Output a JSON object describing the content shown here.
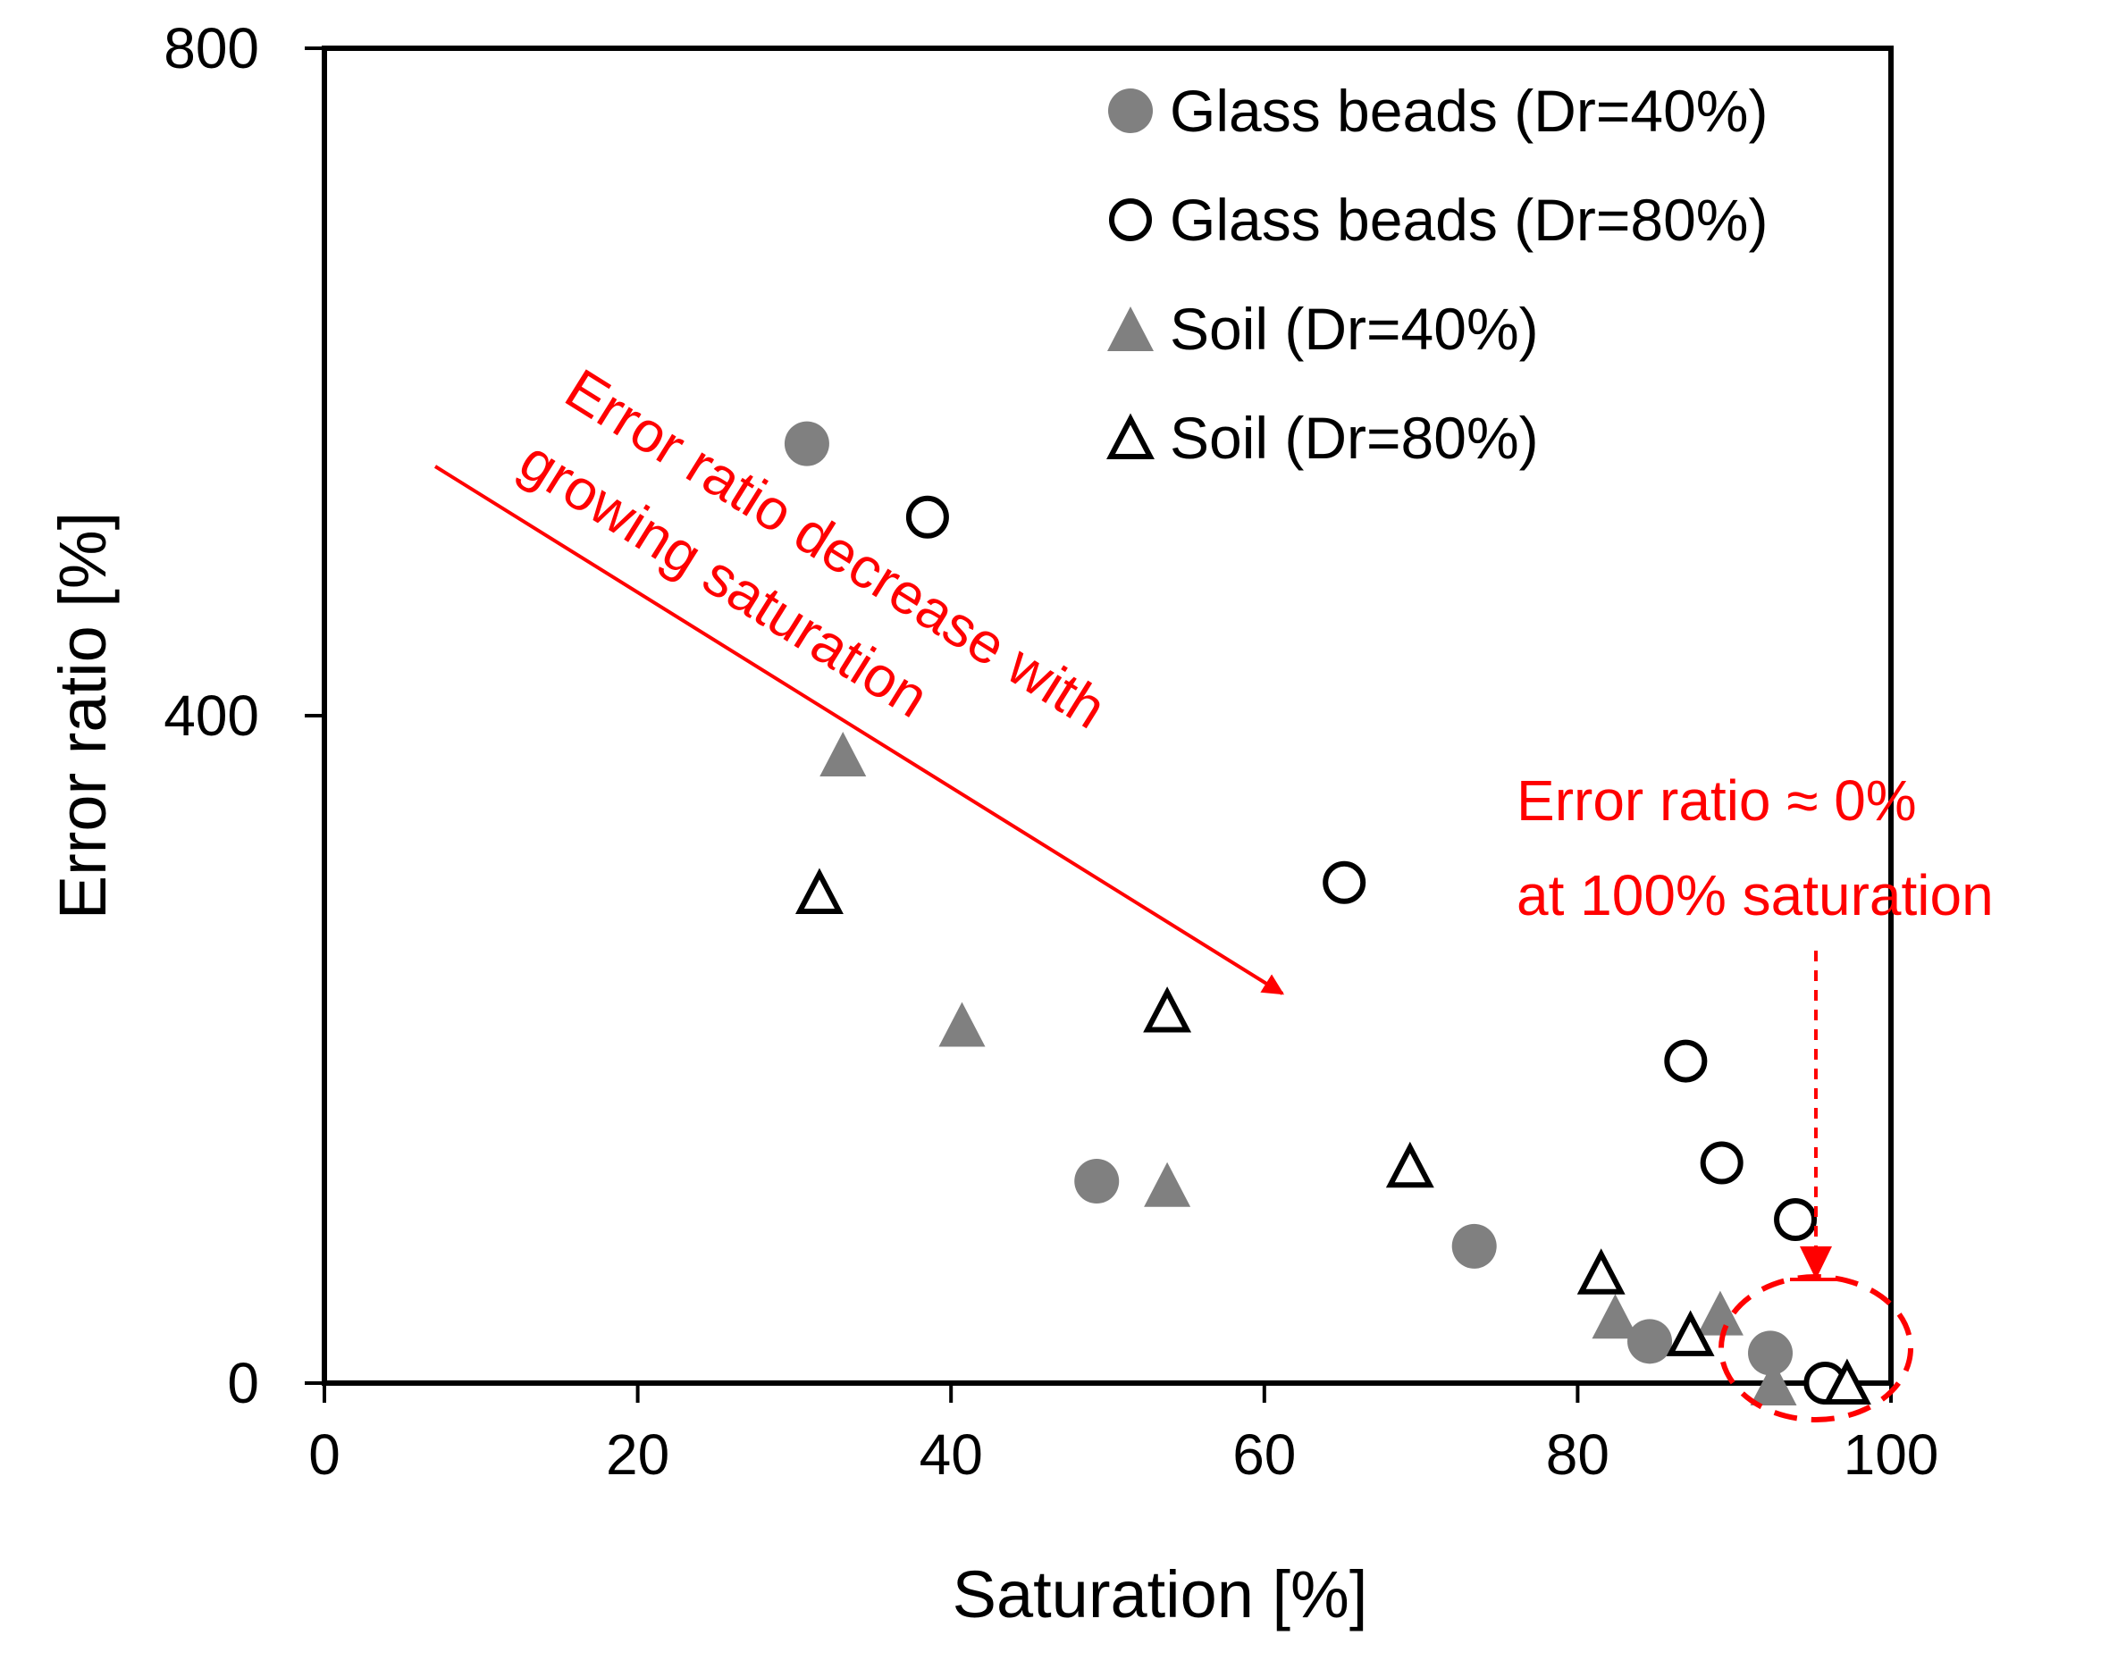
{
  "chart_data": {
    "type": "scatter",
    "title": "",
    "xlabel": "Saturation [%]",
    "ylabel": "Error ratio [%]",
    "xlim": [
      0,
      100
    ],
    "ylim": [
      0,
      800
    ],
    "xticks": [
      0,
      20,
      40,
      60,
      80,
      100
    ],
    "xtick_labels": [
      "0",
      "20",
      "40",
      "60",
      "80",
      "100"
    ],
    "yticks": [
      0,
      400,
      800
    ],
    "ytick_labels": [
      "0",
      "400",
      "800"
    ],
    "grid": false,
    "legend_position": "top-right",
    "series": [
      {
        "name": "Glass beads (Dr=40%)",
        "marker": "circle-filled",
        "color": "#808080",
        "points": [
          [
            30.8,
            563
          ],
          [
            49.3,
            121
          ],
          [
            73.4,
            82
          ],
          [
            84.6,
            25
          ],
          [
            92.3,
            18
          ]
        ]
      },
      {
        "name": "Glass beads (Dr=80%)",
        "marker": "circle-open",
        "color": "#000000",
        "points": [
          [
            38.5,
            519
          ],
          [
            65.1,
            300
          ],
          [
            86.9,
            193
          ],
          [
            89.2,
            132
          ],
          [
            93.9,
            98
          ],
          [
            95.8,
            0
          ]
        ]
      },
      {
        "name": "Soil (Dr=40%)",
        "marker": "triangle-filled",
        "color": "#808080",
        "points": [
          [
            33.1,
            377
          ],
          [
            40.7,
            215
          ],
          [
            53.8,
            119
          ],
          [
            82.4,
            40
          ],
          [
            89.1,
            42
          ],
          [
            92.5,
            0
          ]
        ]
      },
      {
        "name": "Soil (Dr=80%)",
        "marker": "triangle-open",
        "color": "#000000",
        "points": [
          [
            31.6,
            294
          ],
          [
            53.8,
            223
          ],
          [
            69.3,
            130
          ],
          [
            81.5,
            66
          ],
          [
            87.2,
            29
          ],
          [
            97.2,
            0
          ]
        ]
      }
    ],
    "annotations": {
      "arrow_text_line1": "Error ratio decrease with",
      "arrow_text_line2": "growing saturation",
      "note_line1": "Error ratio ≈ 0%",
      "note_line2": "at 100% saturation",
      "color": "#ff0000"
    }
  }
}
